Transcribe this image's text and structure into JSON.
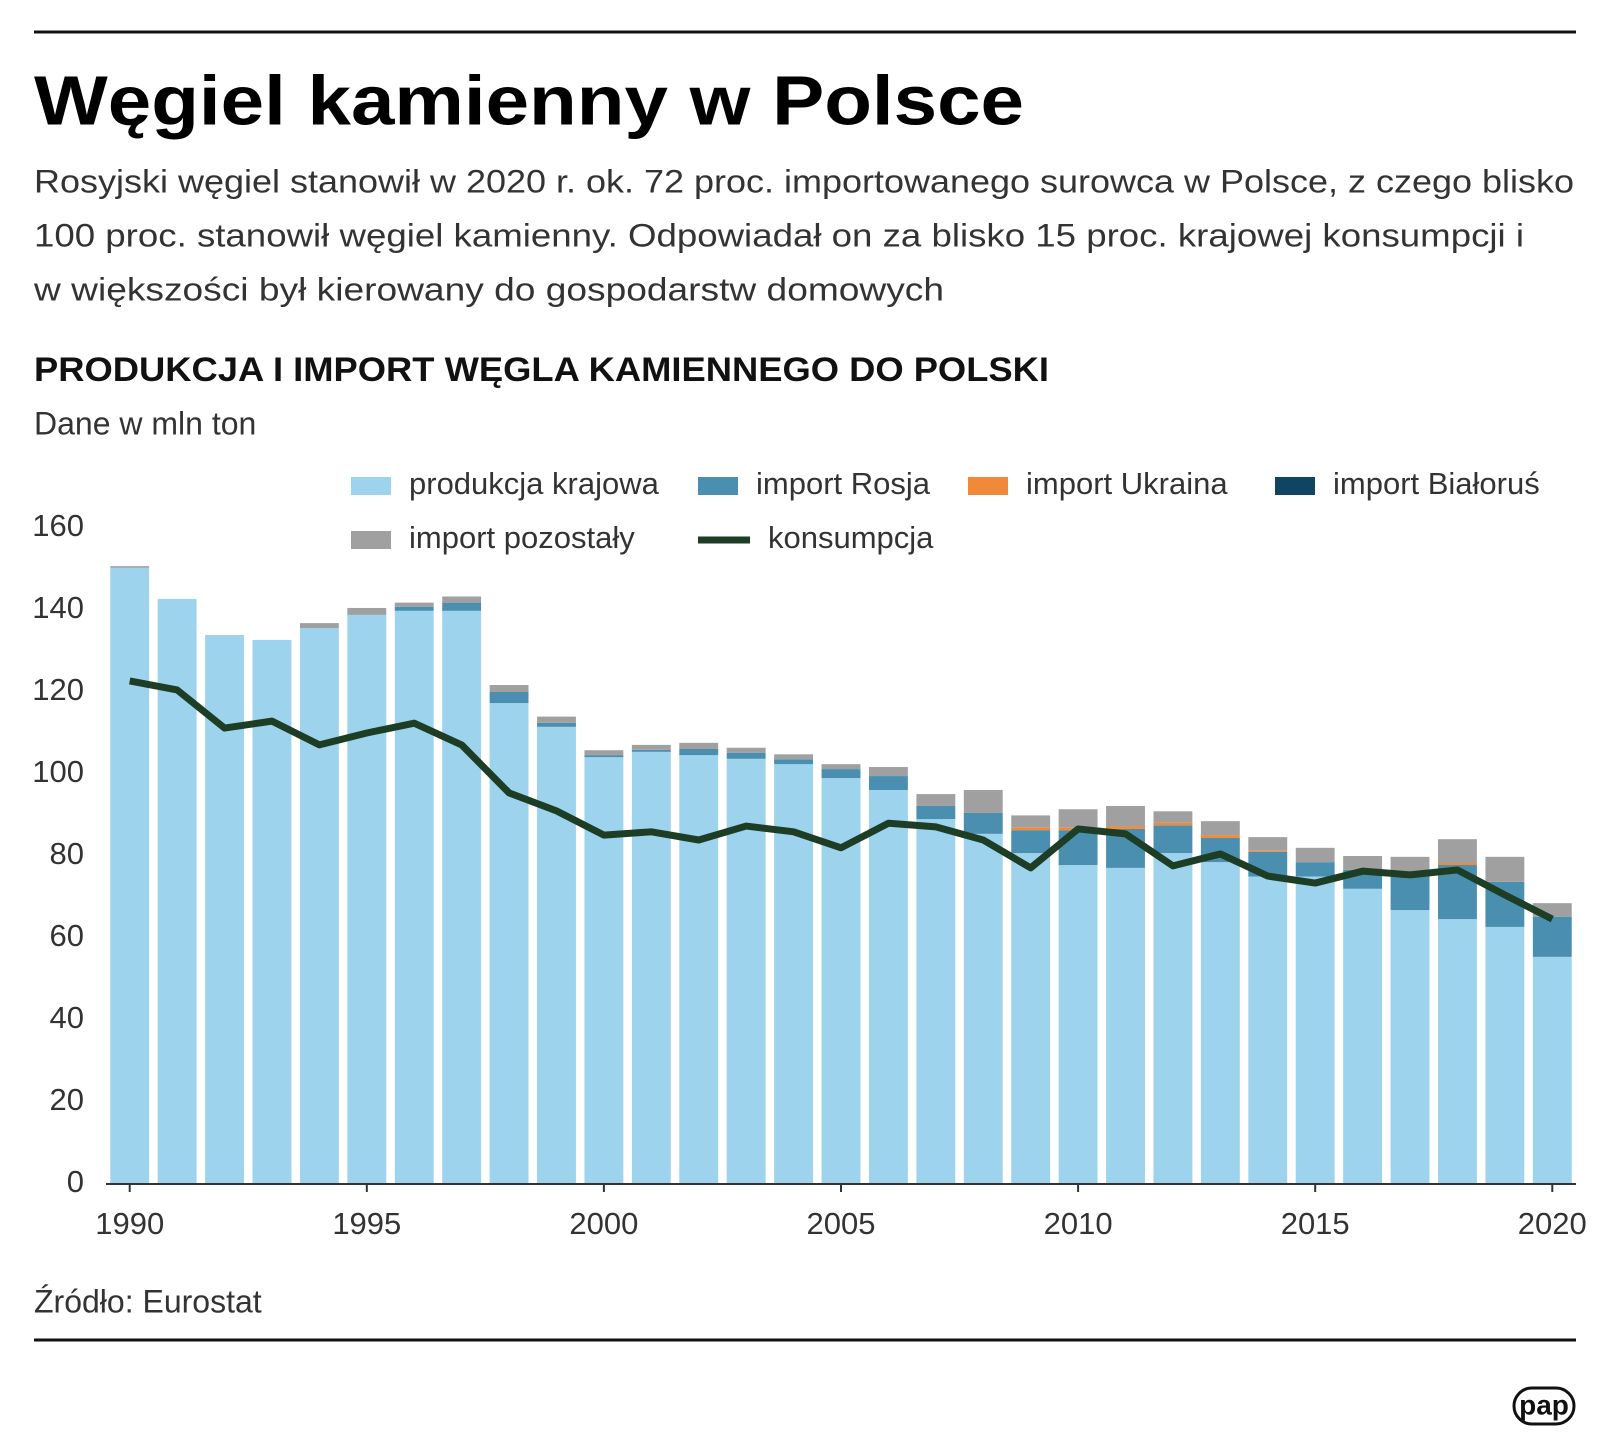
{
  "chart_data": {
    "type": "bar",
    "title": "Węgiel kamienny w Polsce",
    "subtitle": [
      "Rosyjski węgiel stanowił w 2020 r. ok. 72 proc. importowanego surowca w Polsce, z czego blisko",
      "100 proc. stanowił węgiel kamienny. Odpowiadał on za blisko 15 proc. krajowej konsumpcji i",
      "w większości był kierowany do gospodarstw domowych"
    ],
    "chart_title": "PRODUKCJA I IMPORT WĘGLA KAMIENNEGO DO POLSKI",
    "unit": "Dane w mln ton",
    "source": "Źródło: Eurostat",
    "logo": "pap",
    "stacked": true,
    "x": [
      1990,
      1991,
      1992,
      1993,
      1994,
      1995,
      1996,
      1997,
      1998,
      1999,
      2000,
      2001,
      2002,
      2003,
      2004,
      2005,
      2006,
      2007,
      2008,
      2009,
      2010,
      2011,
      2012,
      2013,
      2014,
      2015,
      2016,
      2017,
      2018,
      2019,
      2020
    ],
    "xlim": [
      1989.5,
      2020.5
    ],
    "xticks": [
      1990,
      1995,
      2000,
      2005,
      2010,
      2015,
      2020
    ],
    "ylim": [
      0,
      160
    ],
    "yticks": [
      0,
      20,
      40,
      60,
      80,
      100,
      120,
      140,
      160
    ],
    "grid": false,
    "series": [
      {
        "name": "produkcja krajowa",
        "color": "#9dd3ec",
        "values": [
          150.3,
          142.7,
          133.9,
          132.7,
          135.6,
          138.8,
          139.8,
          139.8,
          117.3,
          111.5,
          104.1,
          105.4,
          104.6,
          103.7,
          102.4,
          99,
          96.1,
          89,
          85.4,
          80.7,
          77.8,
          77.1,
          80.7,
          78.5,
          75,
          75,
          72,
          66.8,
          64.6,
          62.7,
          55.4
        ]
      },
      {
        "name": "import Rosja",
        "color": "#4a8fb0",
        "values": [
          0,
          0,
          0,
          0,
          0,
          0,
          1,
          2,
          2.7,
          1,
          0.5,
          0.5,
          1.5,
          1.5,
          1.2,
          2.2,
          3.4,
          3.2,
          5.1,
          5.6,
          8.5,
          9.5,
          6.8,
          5.9,
          6,
          3.5,
          4.6,
          9.5,
          13.2,
          11,
          9.8
        ]
      },
      {
        "name": "import Ukraina",
        "color": "#f08a3a",
        "values": [
          0,
          0,
          0,
          0,
          0,
          0,
          0,
          0,
          0,
          0,
          0,
          0,
          0,
          0,
          0,
          0,
          0,
          0,
          0,
          0.7,
          0.7,
          0.7,
          0.7,
          0.7,
          0.3,
          0,
          0,
          0,
          0.5,
          0,
          0
        ]
      },
      {
        "name": "import Białoruś",
        "color": "#0f4560",
        "values": [
          0,
          0,
          0,
          0,
          0,
          0,
          0,
          0,
          0,
          0,
          0,
          0,
          0,
          0,
          0,
          0,
          0,
          0,
          0,
          0,
          0,
          0,
          0,
          0,
          0,
          0,
          0,
          0,
          0,
          0,
          0
        ]
      },
      {
        "name": "import pozostały",
        "color": "#a0a0a0",
        "values": [
          0.4,
          0,
          0,
          0,
          1.2,
          1.7,
          1,
          1.5,
          1.7,
          1.5,
          1.2,
          1.2,
          1.5,
          1.2,
          1.2,
          1.2,
          2.2,
          2.9,
          5.6,
          2.9,
          4.4,
          4.9,
          2.7,
          3.4,
          3.3,
          3.5,
          3.4,
          3.5,
          5.8,
          6.1,
          3.3
        ]
      },
      {
        "name": "konsumpcja",
        "type": "line",
        "color": "#1d3d24",
        "values": [
          122.7,
          120.5,
          111.2,
          112.9,
          107.1,
          110,
          112.4,
          107.1,
          95.4,
          91,
          85.1,
          85.9,
          83.9,
          87.3,
          85.9,
          82,
          88,
          87.1,
          83.9,
          77.1,
          86.6,
          85.4,
          77.6,
          80.5,
          75.1,
          73.4,
          76.3,
          75.4,
          76.6,
          70.5,
          64.6
        ]
      }
    ]
  }
}
